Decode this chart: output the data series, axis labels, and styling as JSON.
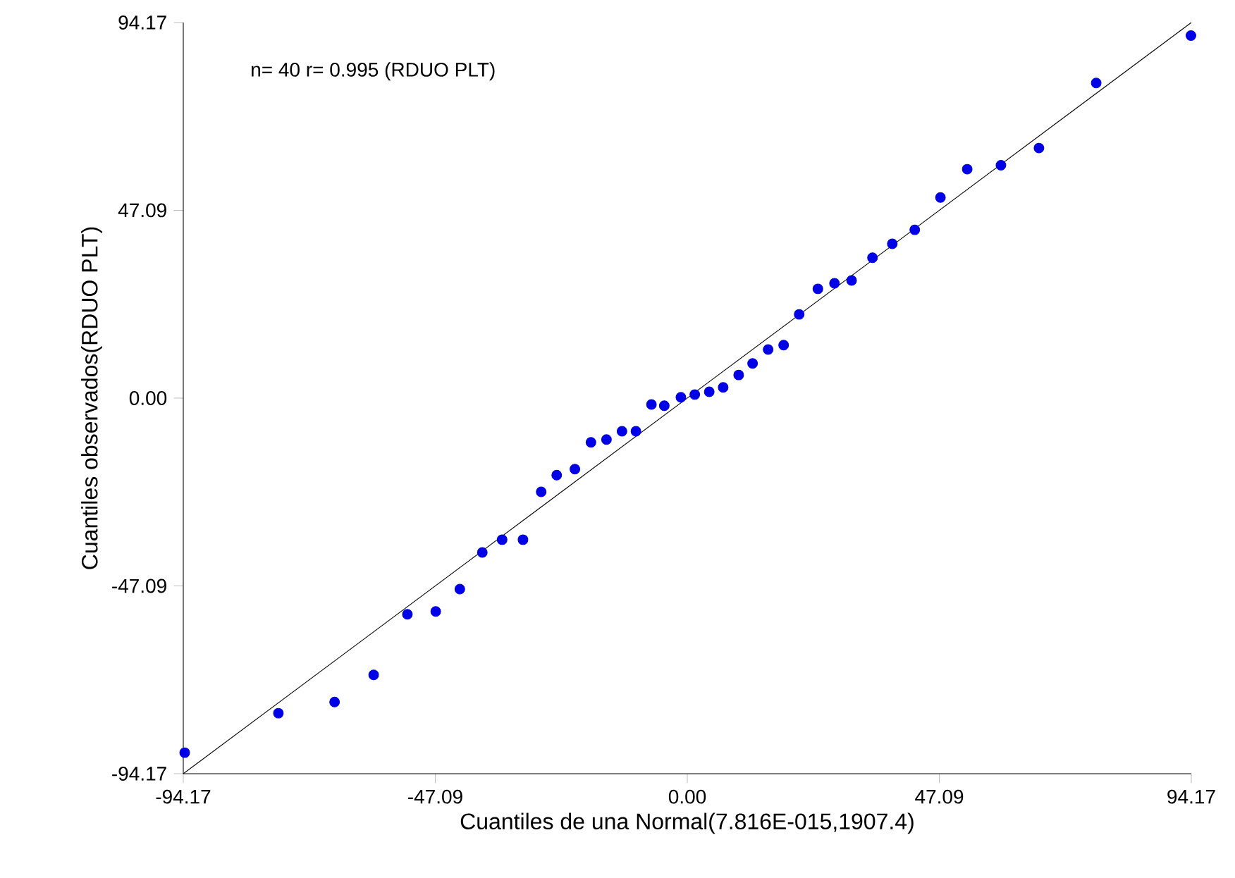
{
  "chart_data": {
    "type": "scatter",
    "xlabel": "Cuantiles de una Normal(7.816E-015,1907.4)",
    "ylabel": "Cuantiles observados(RDUO  PLT)",
    "annotations": [
      "n= 40 r= 0.995 (RDUO PLT)"
    ],
    "xlim": [
      -94.17,
      94.17
    ],
    "ylim": [
      -94.17,
      94.17
    ],
    "xticks": [
      {
        "value": -94.17,
        "label": "-94.17"
      },
      {
        "value": -47.09,
        "label": "-47.09"
      },
      {
        "value": 0,
        "label": "0.00"
      },
      {
        "value": 47.09,
        "label": "47.09"
      },
      {
        "value": 94.17,
        "label": "94.17"
      }
    ],
    "yticks": [
      {
        "value": -94.17,
        "label": "-94.17"
      },
      {
        "value": -47.09,
        "label": "-47.09"
      },
      {
        "value": 0,
        "label": "0.00"
      },
      {
        "value": 47.09,
        "label": "47.09"
      },
      {
        "value": 94.17,
        "label": "94.17"
      }
    ],
    "grid": false,
    "series": [
      {
        "marker": "circle",
        "color": "#0000e6",
        "x": [
          -93.9,
          -76.4,
          -65.9,
          -58.6,
          -52.3,
          -47.0,
          -42.5,
          -38.3,
          -34.6,
          -30.7,
          -27.3,
          -24.4,
          -21.0,
          -18.0,
          -15.1,
          -12.2,
          -9.6,
          -6.7,
          -4.3,
          -1.2,
          1.4,
          4.1,
          6.7,
          9.6,
          12.2,
          15.1,
          18.0,
          20.9,
          24.4,
          27.5,
          30.7,
          34.6,
          38.3,
          42.5,
          47.3,
          52.3,
          58.6,
          65.7,
          76.4,
          94.1
        ],
        "values": [
          -88.9,
          -79.0,
          -76.2,
          -69.4,
          -54.2,
          -53.5,
          -47.9,
          -38.7,
          -35.5,
          -35.5,
          -23.5,
          -19.3,
          -17.8,
          -11.1,
          -10.4,
          -8.3,
          -8.3,
          -1.6,
          -1.9,
          0.2,
          0.9,
          1.6,
          2.7,
          5.8,
          8.7,
          12.2,
          13.3,
          21.0,
          27.4,
          28.8,
          29.5,
          35.2,
          38.7,
          42.2,
          50.3,
          57.4,
          58.4,
          62.7,
          79.0,
          90.9
        ]
      },
      {
        "type": "line",
        "marker": "none",
        "line_style": "solid",
        "color": "#000000",
        "x": [
          -94.17,
          94.17
        ],
        "values": [
          -94.17,
          94.17
        ]
      }
    ]
  }
}
